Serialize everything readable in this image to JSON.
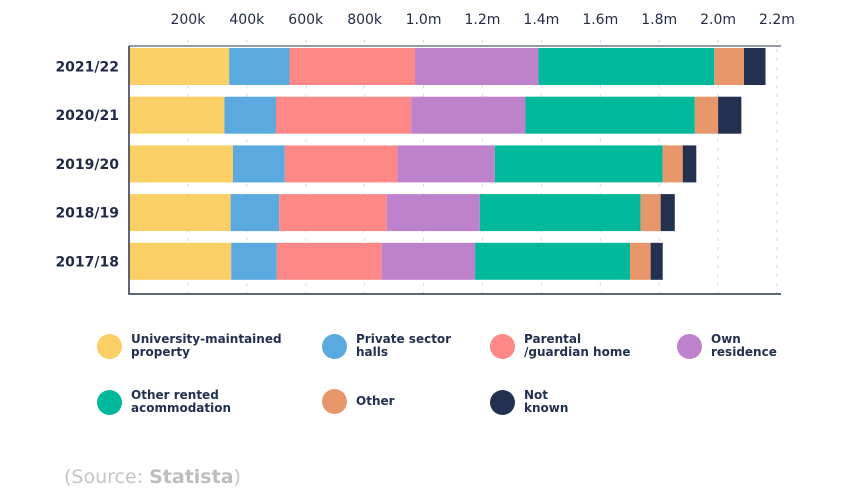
{
  "chart_data": {
    "type": "bar",
    "orientation": "horizontal",
    "stacked": true,
    "categories": [
      "2021/22",
      "2020/21",
      "2019/20",
      "2018/19",
      "2017/18"
    ],
    "x_ticks": [
      "200k",
      "400k",
      "600k",
      "800k",
      "1.0m",
      "1.2m",
      "1.4m",
      "1.6m",
      "1.8m",
      "2.0m",
      "2.2m"
    ],
    "x_tick_values": [
      200,
      400,
      600,
      800,
      1000,
      1200,
      1400,
      1600,
      1800,
      2000,
      2200
    ],
    "xlim": [
      0,
      2200
    ],
    "units": "thousands",
    "grid": "vertical dashed",
    "legend_position": "bottom",
    "series": [
      {
        "name": "University-maintained\nproperty",
        "color": "#F9CF66",
        "values": [
          340,
          324,
          353,
          345,
          347
        ]
      },
      {
        "name": "Private sector\nhalls",
        "color": "#5AAAE0",
        "values": [
          205,
          175,
          176,
          165,
          155
        ]
      },
      {
        "name": "Parental\n/guardian home",
        "color": "#FE8886",
        "values": [
          426,
          459,
          382,
          365,
          356
        ]
      },
      {
        "name": "Own\nresidence",
        "color": "#BE82CD",
        "values": [
          419,
          388,
          331,
          316,
          317
        ]
      },
      {
        "name": "Other rented\nacommodation",
        "color": "#00B99A",
        "values": [
          597,
          575,
          570,
          546,
          526
        ]
      },
      {
        "name": "Other",
        "color": "#E8976A",
        "values": [
          101,
          79,
          68,
          68,
          70
        ]
      },
      {
        "name": "Not\nknown",
        "color": "#23304F",
        "values": [
          73,
          79,
          46,
          48,
          41
        ]
      }
    ]
  },
  "source": {
    "prefix": "(Source: ",
    "name": "Statista",
    "suffix": ")"
  }
}
